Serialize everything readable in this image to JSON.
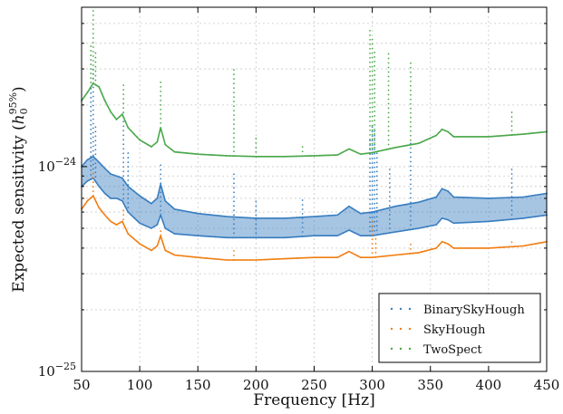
{
  "chart_data": {
    "type": "scatter",
    "title": "",
    "xlabel": "Frequency [Hz]",
    "ylabel": "Expected sensitivity (h_0^{95%})",
    "ylabel_parts": {
      "main": "Expected sensitivity (",
      "h": "h",
      "sub": "0",
      "sup": "95%",
      "close": ")"
    },
    "xlim": [
      50,
      450
    ],
    "ylim": [
      1e-25,
      6e-24
    ],
    "yscale": "log",
    "grid": true,
    "legend_position": "bottom-right",
    "x_ticks": [
      {
        "value": 50,
        "label": "50"
      },
      {
        "value": 100,
        "label": "100"
      },
      {
        "value": 150,
        "label": "150"
      },
      {
        "value": 200,
        "label": "200"
      },
      {
        "value": 250,
        "label": "250"
      },
      {
        "value": 300,
        "label": "300"
      },
      {
        "value": 350,
        "label": "350"
      },
      {
        "value": 400,
        "label": "400"
      },
      {
        "value": 450,
        "label": "450"
      }
    ],
    "y_ticks": [
      {
        "value": 1e-25,
        "base": "10",
        "exp": "−25"
      },
      {
        "value": 1e-24,
        "base": "10",
        "exp": "−24"
      }
    ],
    "series": [
      {
        "name": "BinarySkyHough",
        "color": "#3a7fc0",
        "band": true,
        "upper": [
          [
            50,
            1e-24
          ],
          [
            55,
            1.08e-24
          ],
          [
            60,
            1.12e-24
          ],
          [
            65,
            1.05e-24
          ],
          [
            70,
            9.8e-25
          ],
          [
            75,
            9.2e-25
          ],
          [
            80,
            9e-25
          ],
          [
            85,
            8.8e-25
          ],
          [
            90,
            8e-25
          ],
          [
            100,
            7.2e-25
          ],
          [
            110,
            6.6e-25
          ],
          [
            115,
            7e-25
          ],
          [
            118,
            8.2e-25
          ],
          [
            122,
            6.8e-25
          ],
          [
            130,
            6.2e-25
          ],
          [
            150,
            5.9e-25
          ],
          [
            175,
            5.7e-25
          ],
          [
            200,
            5.6e-25
          ],
          [
            225,
            5.6e-25
          ],
          [
            250,
            5.7e-25
          ],
          [
            270,
            5.8e-25
          ],
          [
            280,
            6.4e-25
          ],
          [
            290,
            5.9e-25
          ],
          [
            300,
            6e-25
          ],
          [
            320,
            6.4e-25
          ],
          [
            340,
            6.7e-25
          ],
          [
            355,
            7.1e-25
          ],
          [
            360,
            7.8e-25
          ],
          [
            365,
            7.6e-25
          ],
          [
            370,
            7.1e-25
          ],
          [
            400,
            7e-25
          ],
          [
            430,
            7.1e-25
          ],
          [
            450,
            7.4e-25
          ]
        ],
        "lower": [
          [
            50,
            8e-25
          ],
          [
            55,
            8.5e-25
          ],
          [
            60,
            8.8e-25
          ],
          [
            65,
            8e-25
          ],
          [
            70,
            7.4e-25
          ],
          [
            75,
            7e-25
          ],
          [
            80,
            7e-25
          ],
          [
            85,
            6.8e-25
          ],
          [
            90,
            6e-25
          ],
          [
            100,
            5.3e-25
          ],
          [
            110,
            5e-25
          ],
          [
            115,
            5.2e-25
          ],
          [
            118,
            5.8e-25
          ],
          [
            122,
            5e-25
          ],
          [
            130,
            4.7e-25
          ],
          [
            150,
            4.6e-25
          ],
          [
            175,
            4.5e-25
          ],
          [
            200,
            4.5e-25
          ],
          [
            225,
            4.5e-25
          ],
          [
            250,
            4.6e-25
          ],
          [
            270,
            4.6e-25
          ],
          [
            280,
            4.9e-25
          ],
          [
            290,
            4.6e-25
          ],
          [
            300,
            4.6e-25
          ],
          [
            320,
            4.8e-25
          ],
          [
            340,
            5e-25
          ],
          [
            355,
            5.2e-25
          ],
          [
            360,
            5.6e-25
          ],
          [
            365,
            5.5e-25
          ],
          [
            370,
            5.3e-25
          ],
          [
            400,
            5.4e-25
          ],
          [
            430,
            5.6e-25
          ],
          [
            450,
            5.8e-25
          ]
        ],
        "spikes": [
          [
            58,
            2.5e-24
          ],
          [
            60,
            3e-24
          ],
          [
            62,
            1.6e-24
          ],
          [
            86,
            1.9e-24
          ],
          [
            90,
            1.2e-24
          ],
          [
            118,
            1.05e-24
          ],
          [
            181,
            9.5e-25
          ],
          [
            200,
            7e-25
          ],
          [
            240,
            7.2e-25
          ],
          [
            298,
            1.4e-24
          ],
          [
            300,
            1.6e-24
          ],
          [
            302,
            1.5e-24
          ],
          [
            304,
            1.2e-24
          ],
          [
            315,
            1e-24
          ],
          [
            333,
            1.3e-24
          ],
          [
            420,
            1e-24
          ]
        ]
      },
      {
        "name": "SkyHough",
        "color": "#f07f14",
        "band": false,
        "line": [
          [
            50,
            6.2e-25
          ],
          [
            55,
            6.8e-25
          ],
          [
            60,
            7.2e-25
          ],
          [
            65,
            6.3e-25
          ],
          [
            70,
            5.8e-25
          ],
          [
            75,
            5.4e-25
          ],
          [
            80,
            5.2e-25
          ],
          [
            85,
            5.4e-25
          ],
          [
            90,
            4.7e-25
          ],
          [
            100,
            4.2e-25
          ],
          [
            110,
            3.9e-25
          ],
          [
            115,
            4.1e-25
          ],
          [
            118,
            4.6e-25
          ],
          [
            122,
            3.9e-25
          ],
          [
            130,
            3.7e-25
          ],
          [
            150,
            3.6e-25
          ],
          [
            175,
            3.5e-25
          ],
          [
            200,
            3.5e-25
          ],
          [
            225,
            3.55e-25
          ],
          [
            250,
            3.6e-25
          ],
          [
            270,
            3.6e-25
          ],
          [
            280,
            3.85e-25
          ],
          [
            290,
            3.6e-25
          ],
          [
            300,
            3.6e-25
          ],
          [
            320,
            3.7e-25
          ],
          [
            340,
            3.8e-25
          ],
          [
            355,
            4e-25
          ],
          [
            360,
            4.3e-25
          ],
          [
            365,
            4.2e-25
          ],
          [
            370,
            4e-25
          ],
          [
            400,
            4e-25
          ],
          [
            430,
            4.1e-25
          ],
          [
            450,
            4.3e-25
          ]
        ],
        "spikes": [
          [
            60,
            9.5e-25
          ],
          [
            86,
            6.2e-25
          ],
          [
            118,
            5e-25
          ],
          [
            181,
            4e-25
          ],
          [
            300,
            5.5e-25
          ],
          [
            303,
            4.5e-25
          ],
          [
            333,
            4.2e-25
          ],
          [
            420,
            4.5e-25
          ]
        ]
      },
      {
        "name": "TwoSpect",
        "color": "#4aa84a",
        "band": false,
        "line": [
          [
            50,
            2.1e-24
          ],
          [
            55,
            2.3e-24
          ],
          [
            60,
            2.55e-24
          ],
          [
            65,
            2.45e-24
          ],
          [
            70,
            2.1e-24
          ],
          [
            75,
            1.85e-24
          ],
          [
            80,
            1.7e-24
          ],
          [
            85,
            1.8e-24
          ],
          [
            90,
            1.55e-24
          ],
          [
            100,
            1.35e-24
          ],
          [
            110,
            1.25e-24
          ],
          [
            115,
            1.32e-24
          ],
          [
            118,
            1.55e-24
          ],
          [
            122,
            1.28e-24
          ],
          [
            130,
            1.18e-24
          ],
          [
            150,
            1.15e-24
          ],
          [
            175,
            1.13e-24
          ],
          [
            200,
            1.12e-24
          ],
          [
            225,
            1.12e-24
          ],
          [
            250,
            1.13e-24
          ],
          [
            270,
            1.14e-24
          ],
          [
            280,
            1.22e-24
          ],
          [
            290,
            1.15e-24
          ],
          [
            300,
            1.17e-24
          ],
          [
            320,
            1.24e-24
          ],
          [
            340,
            1.3e-24
          ],
          [
            355,
            1.42e-24
          ],
          [
            360,
            1.52e-24
          ],
          [
            365,
            1.48e-24
          ],
          [
            370,
            1.4e-24
          ],
          [
            400,
            1.4e-24
          ],
          [
            430,
            1.44e-24
          ],
          [
            450,
            1.48e-24
          ]
        ],
        "spikes": [
          [
            58,
            4e-24
          ],
          [
            60,
            5.8e-24
          ],
          [
            62,
            3.6e-24
          ],
          [
            86,
            2.6e-24
          ],
          [
            118,
            2.6e-24
          ],
          [
            181,
            3e-24
          ],
          [
            200,
            1.4e-24
          ],
          [
            240,
            1.3e-24
          ],
          [
            298,
            4.8e-24
          ],
          [
            300,
            4.2e-24
          ],
          [
            302,
            3.7e-24
          ],
          [
            314,
            3.6e-24
          ],
          [
            333,
            3.3e-24
          ],
          [
            420,
            1.9e-24
          ]
        ]
      }
    ]
  }
}
